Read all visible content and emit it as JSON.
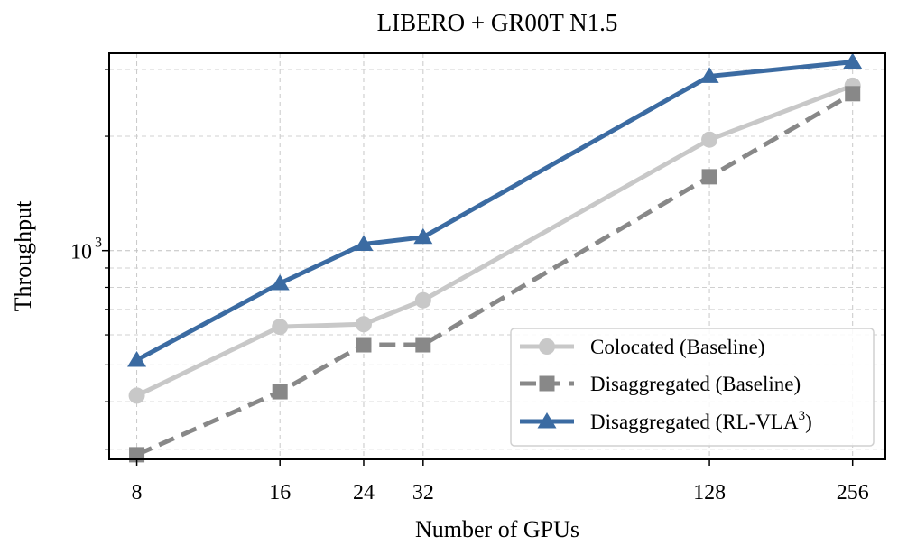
{
  "chart_data": {
    "type": "line",
    "title": "LIBERO + GR00T N1.5",
    "xlabel": "Number of GPUs",
    "ylabel": "Throughput",
    "x_scale": "log2",
    "y_scale": "log10",
    "x_ticks": [
      8,
      16,
      24,
      32,
      128,
      256
    ],
    "x_tick_labels": [
      "8",
      "16",
      "24",
      "32",
      "128",
      "256"
    ],
    "xlim": [
      7.0,
      300
    ],
    "ylim": [
      282,
      3310
    ],
    "y_tick_major": {
      "base": "10",
      "exponent": "3",
      "value": 1000
    },
    "y_tick_minor": [
      300,
      400,
      500,
      600,
      700,
      800,
      900,
      2000,
      3000
    ],
    "grid": true,
    "legend_position": "lower-right",
    "series": [
      {
        "name": "Colocated (Baseline)",
        "color": "#c8c8c8",
        "line_style": "solid",
        "marker": "circle",
        "x": [
          8,
          16,
          24,
          32,
          128,
          256
        ],
        "y": [
          415,
          630,
          640,
          740,
          1960,
          2720
        ]
      },
      {
        "name": "Disaggregated (Baseline)",
        "color": "#888888",
        "line_style": "dashed",
        "marker": "square",
        "x": [
          8,
          16,
          24,
          32,
          128,
          256
        ],
        "y": [
          290,
          425,
          565,
          565,
          1565,
          2590
        ]
      },
      {
        "name_prefix": "Disaggregated (RL-VLA",
        "name_superscript": "3",
        "name_suffix": ")",
        "color": "#3b6ba2",
        "line_style": "solid",
        "marker": "triangle",
        "x": [
          8,
          16,
          24,
          32,
          128,
          256
        ],
        "y": [
          515,
          820,
          1040,
          1085,
          2880,
          3140
        ]
      }
    ]
  }
}
